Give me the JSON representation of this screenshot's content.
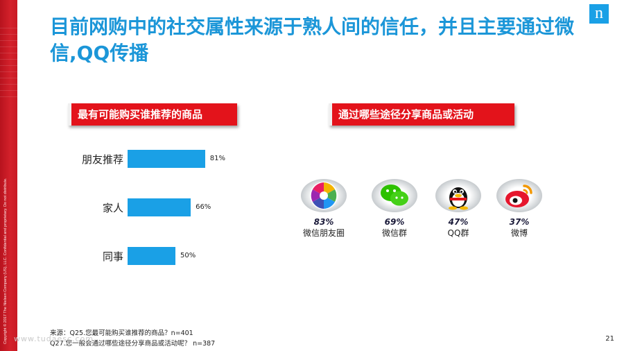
{
  "title": "目前网购中的社交属性来源于熟人间的信任，并且主要通过微信,QQ传播",
  "logo_text": "n",
  "copyright": "Copyright © 2017 The Nielsen Company (US), LLC. Confidential and proprietary. Do not distribute.",
  "left_panel": {
    "header": "最有可能购买谁推荐的商品"
  },
  "right_panel": {
    "header": "通过哪些途径分享商品或活动",
    "channels": [
      {
        "pct": "83%",
        "name": "微信朋友圈",
        "icon": "moments-icon"
      },
      {
        "pct": "69%",
        "name": "微信群",
        "icon": "wechat-icon"
      },
      {
        "pct": "47%",
        "name": "QQ群",
        "icon": "qq-penguin-icon"
      },
      {
        "pct": "37%",
        "name": "微博",
        "icon": "weibo-icon"
      }
    ]
  },
  "chart_data": [
    {
      "type": "bar",
      "orientation": "horizontal",
      "title": "最有可能购买谁推荐的商品",
      "categories": [
        "朋友推荐",
        "家人",
        "同事"
      ],
      "values": [
        81,
        66,
        50
      ],
      "value_labels": [
        "81%",
        "66%",
        "50%"
      ],
      "unit": "%",
      "xlim": [
        0,
        100
      ],
      "grid": false,
      "color": "#1aa0e6"
    },
    {
      "type": "table",
      "title": "通过哪些途径分享商品或活动",
      "categories": [
        "微信朋友圈",
        "微信群",
        "QQ群",
        "微博"
      ],
      "values": [
        83,
        69,
        47,
        37
      ],
      "unit": "%"
    }
  ],
  "footnotes": [
    "来源：Q25.您最可能购买谁推荐的商品？n=401",
    "Q27.您一般会通过哪些途径分享商品或活动呢？  n=387"
  ],
  "page_number": "21",
  "watermark": "www.tudaesc.com",
  "colors": {
    "accent_blue": "#1aa0e6",
    "header_red": "#e3131b",
    "title_blue": "#1b96d8"
  }
}
